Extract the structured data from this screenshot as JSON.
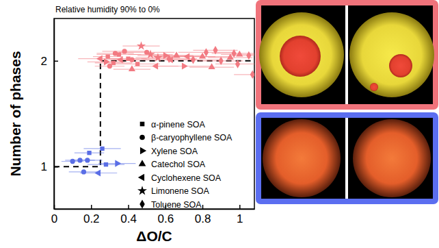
{
  "chart_data": {
    "type": "scatter",
    "title": "Relative humidity 90% to 0%",
    "x_label": "ΔO/C",
    "y_label": "Number of phases",
    "xlim": [
      0,
      1.08
    ],
    "xticks": [
      0,
      0.2,
      0.4,
      0.6,
      0.8,
      1
    ],
    "ylim": [
      0.6,
      2.4
    ],
    "yticks": [
      1,
      2
    ],
    "legend": "right",
    "series": [
      {
        "name": "α-pinene SOA",
        "marker": "square",
        "x": [
          0.29,
          0.32,
          0.35,
          0.4,
          0.45,
          0.19,
          0.26,
          0.28
        ],
        "values": [
          2.04,
          1.98,
          2.06,
          2.02,
          1.97,
          1.13,
          1.17,
          1.02
        ],
        "x_err": [
          0.08,
          0.1,
          0.12,
          0.1,
          0.12,
          0.08,
          0.1,
          0.1
        ],
        "colors": [
          "#f27a82",
          "#f27a82",
          "#f27a82",
          "#f27a82",
          "#f27a82",
          "#5a6ee6",
          "#5a6ee6",
          "#5a6ee6"
        ]
      },
      {
        "name": "β-caryophyllene SOA",
        "marker": "circle",
        "x": [
          0.33,
          0.38,
          0.42,
          0.5,
          0.3,
          0.1,
          0.14,
          0.18,
          0.16
        ],
        "values": [
          2.07,
          2.09,
          2.01,
          2.08,
          1.95,
          1.05,
          1.06,
          1.06,
          0.95
        ],
        "x_err": [
          0.1,
          0.12,
          0.1,
          0.15,
          0.08,
          0.06,
          0.08,
          0.08,
          0.08
        ],
        "colors": [
          "#f27a82",
          "#f27a82",
          "#f27a82",
          "#f27a82",
          "#f27a82",
          "#5a6ee6",
          "#5a6ee6",
          "#5a6ee6",
          "#5a6ee6"
        ]
      },
      {
        "name": "Xylene SOA",
        "marker": "triangle-right",
        "x": [
          0.6,
          0.28,
          0.7,
          0.34
        ],
        "values": [
          2.05,
          1.99,
          1.95,
          1.03
        ],
        "x_err": [
          0.15,
          0.1,
          0.15,
          0.1
        ],
        "colors": [
          "#f27a82",
          "#f27a82",
          "#f27a82",
          "#5a6ee6"
        ]
      },
      {
        "name": "Catechol SOA",
        "marker": "triangle",
        "x": [
          0.42,
          0.66,
          0.8,
          0.95,
          1.0,
          0.85
        ],
        "values": [
          1.92,
          2.05,
          2.04,
          2.03,
          2.06,
          1.94
        ],
        "x_err": [
          0.1,
          0.15,
          0.15,
          0.12,
          0.1,
          0.12
        ],
        "colors": [
          "#f27a82",
          "#f27a82",
          "#f27a82",
          "#f27a82",
          "#f27a82",
          "#f27a82"
        ]
      },
      {
        "name": "Cyclohexene SOA",
        "marker": "triangle-left",
        "x": [
          0.25,
          0.36,
          0.55,
          0.63,
          0.72,
          0.24
        ],
        "values": [
          2.02,
          2.01,
          1.95,
          2.01,
          2.04,
          0.94
        ],
        "x_err": [
          0.12,
          0.1,
          0.12,
          0.15,
          0.15,
          0.1
        ],
        "colors": [
          "#f27a82",
          "#f27a82",
          "#f27a82",
          "#f27a82",
          "#f27a82",
          "#5a6ee6"
        ]
      },
      {
        "name": "Limonene SOA",
        "marker": "star",
        "x": [
          0.47,
          0.52,
          0.56
        ],
        "values": [
          2.14,
          2.06,
          2.03
        ],
        "x_err": [
          0.1,
          0.12,
          0.12
        ],
        "colors": [
          "#f27a82",
          "#f27a82",
          "#f27a82"
        ]
      },
      {
        "name": "Toluene SOA",
        "marker": "diamond",
        "x": [
          0.62,
          0.75,
          0.82,
          0.9,
          0.97,
          1.05,
          1.07,
          0.99,
          0.87
        ],
        "values": [
          2.02,
          2.01,
          2.08,
          2.0,
          2.07,
          2.05,
          1.87,
          1.97,
          2.1
        ],
        "x_err": [
          0.15,
          0.15,
          0.15,
          0.12,
          0.12,
          0.1,
          0.1,
          0.12,
          0.12
        ],
        "colors": [
          "#f27a82",
          "#f27a82",
          "#f27a82",
          "#f27a82",
          "#f27a82",
          "#f27a82",
          "#f27a82",
          "#f27a82",
          "#f27a82"
        ]
      }
    ],
    "step": {
      "x": [
        0,
        0.25,
        0.25,
        1.08
      ],
      "values": [
        1,
        1,
        2,
        2
      ],
      "color": "#000000",
      "line_style": "dashed"
    }
  }
}
